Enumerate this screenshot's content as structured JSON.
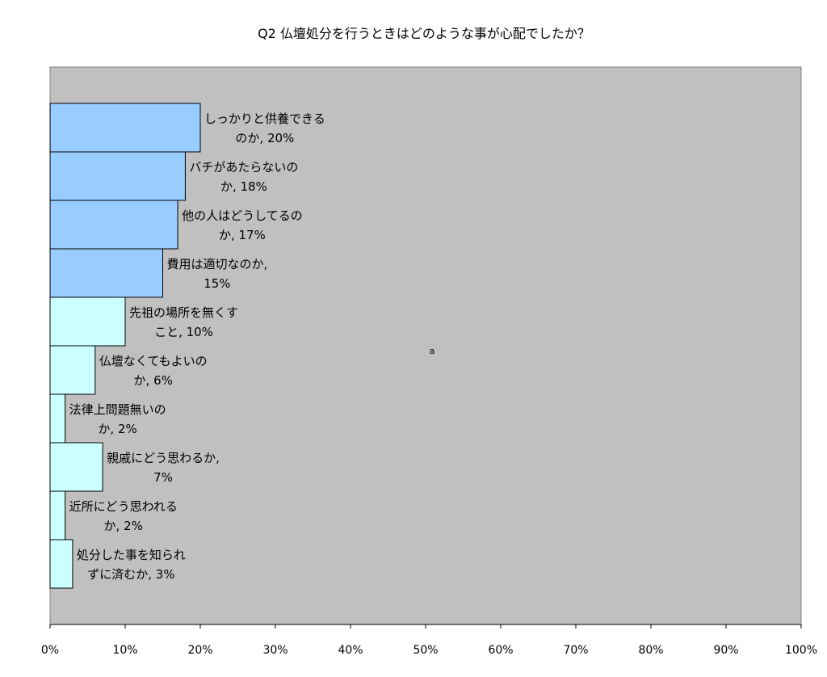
{
  "chart_data": {
    "type": "bar",
    "orientation": "horizontal",
    "title": "Q2  仏壇処分を行うときはどのような事が心配でしたか？",
    "xlabel": "",
    "ylabel": "",
    "xlim": [
      0,
      100
    ],
    "x_ticks": [
      "0%",
      "10%",
      "20%",
      "30%",
      "40%",
      "50%",
      "60%",
      "70%",
      "80%",
      "90%",
      "100%"
    ],
    "grid": false,
    "legend": "none",
    "stray_text": "a",
    "plot_background": "#c0c0c0",
    "colors": {
      "top_group": "#99ccff",
      "bottom_group": "#ccffff",
      "edge": "#000000"
    },
    "categories": [
      "しっかりと供養できるのか",
      "バチがあたらないのか",
      "他の人はどうしてるのか",
      "費用は適切なのか",
      "先祖の場所を無くすこと",
      "仏壇なくてもよいのか",
      "法律上問題無いのか",
      "親戚にどう思わるか",
      "近所にどう思われるか",
      "処分した事を知られずに済むか"
    ],
    "values": [
      20,
      18,
      17,
      15,
      10,
      6,
      2,
      7,
      2,
      3
    ],
    "group": [
      "top",
      "top",
      "top",
      "top",
      "bottom",
      "bottom",
      "bottom",
      "bottom",
      "bottom",
      "bottom"
    ],
    "data_labels": [
      [
        "しっかりと供養できる",
        "のか, 20%"
      ],
      [
        "バチがあたらないの",
        "か, 18%"
      ],
      [
        "他の人はどうしてるの",
        "か, 17%"
      ],
      [
        "費用は適切なのか,",
        "15%"
      ],
      [
        "先祖の場所を無くす",
        "こと, 10%"
      ],
      [
        "仏壇なくてもよいの",
        "か, 6%"
      ],
      [
        "法律上問題無いの",
        "か, 2%"
      ],
      [
        "親戚にどう思わるか,",
        "7%"
      ],
      [
        "近所にどう思われる",
        "か, 2%"
      ],
      [
        "処分した事を知られ",
        "ずに済むか, 3%"
      ]
    ]
  }
}
